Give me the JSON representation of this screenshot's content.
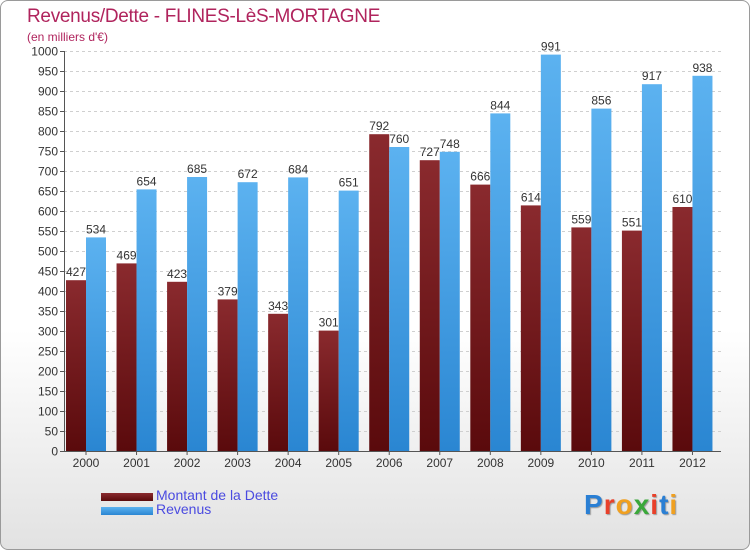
{
  "chart_data": {
    "type": "bar",
    "title": "Revenus/Dette - FLINES-LèS-MORTAGNE",
    "subtitle": "(en milliers d'€)",
    "categories": [
      "2000",
      "2001",
      "2002",
      "2003",
      "2004",
      "2005",
      "2006",
      "2007",
      "2008",
      "2009",
      "2010",
      "2011",
      "2012"
    ],
    "series": [
      {
        "name": "Montant de la Dette",
        "color": "#7a1a1e",
        "values": [
          427,
          469,
          423,
          379,
          343,
          301,
          792,
          727,
          666,
          614,
          559,
          551,
          610
        ]
      },
      {
        "name": "Revenus",
        "color": "#4aa3e8",
        "values": [
          534,
          654,
          685,
          672,
          684,
          651,
          760,
          748,
          844,
          991,
          856,
          917,
          938
        ]
      }
    ],
    "ylim": [
      0,
      1000
    ],
    "ytick_step": 50,
    "grid": true,
    "legend_position": "bottom-left"
  },
  "logo": {
    "letters": [
      "P",
      "r",
      "o",
      "x",
      "i",
      "t",
      "i"
    ],
    "colors": [
      "#2a7fd4",
      "#e8402a",
      "#f0a020",
      "#3aa83a",
      "#e8402a",
      "#2a7fd4",
      "#f0a020"
    ]
  }
}
